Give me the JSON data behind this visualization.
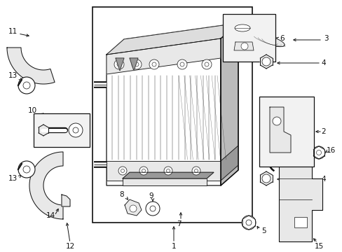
{
  "bg_color": "#ffffff",
  "line_color": "#111111",
  "gray_fill": "#cccccc",
  "light_gray": "#e8e8e8",
  "dark_gray": "#999999",
  "box_fill": "#f2f2f2"
}
